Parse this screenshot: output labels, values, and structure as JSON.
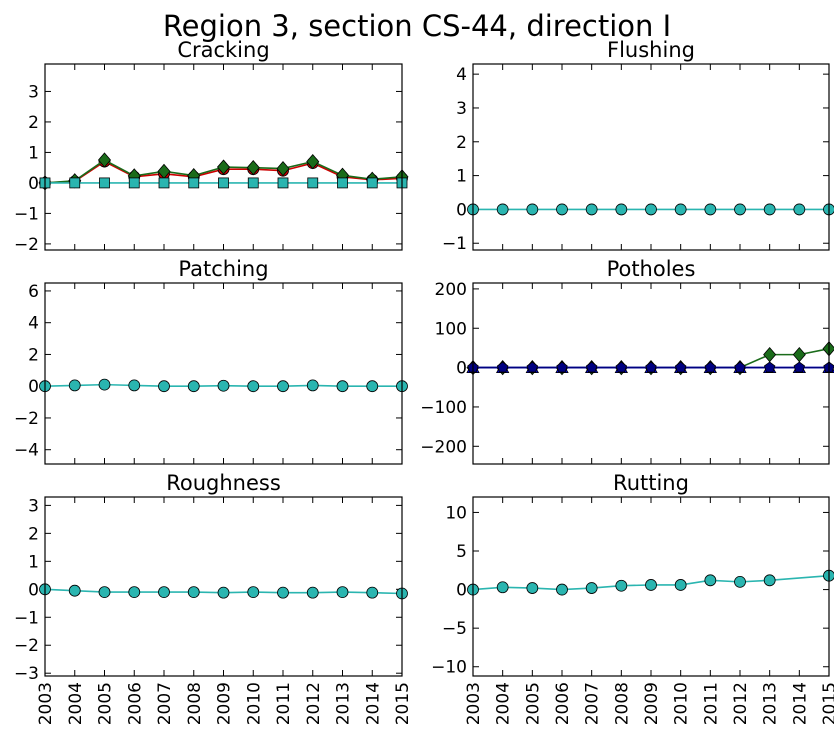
{
  "figure_title": "Region 3, section CS-44, direction I",
  "x_tick_labels": [
    "2003",
    "2004",
    "2005",
    "2006",
    "2007",
    "2008",
    "2009",
    "2010",
    "2011",
    "2012",
    "2013",
    "2014",
    "2015"
  ],
  "chart_data": [
    {
      "type": "line",
      "title": "Cracking",
      "x": [
        2003,
        2004,
        2005,
        2006,
        2007,
        2008,
        2009,
        2010,
        2011,
        2012,
        2013,
        2014,
        2015
      ],
      "xlim": [
        2003,
        2015
      ],
      "ylim": [
        -2.2,
        3.9
      ],
      "yticks": [
        -2,
        -1,
        0,
        1,
        2,
        3
      ],
      "series": [
        {
          "color": "#cc0000",
          "marker": "circle",
          "values": [
            0,
            0.05,
            0.7,
            0.2,
            0.3,
            0.2,
            0.45,
            0.45,
            0.4,
            0.65,
            0.2,
            0.1,
            0.15
          ]
        },
        {
          "color": "#1a6b1a",
          "marker": "diamond",
          "values": [
            0,
            0.07,
            0.75,
            0.23,
            0.38,
            0.24,
            0.52,
            0.5,
            0.47,
            0.7,
            0.25,
            0.12,
            0.2
          ]
        },
        {
          "color": "#2ab5b0",
          "marker": "square",
          "values": [
            0,
            0,
            0,
            0,
            0,
            0,
            0,
            0,
            0,
            0,
            0,
            0,
            0
          ]
        }
      ]
    },
    {
      "type": "line",
      "title": "Flushing",
      "x": [
        2003,
        2004,
        2005,
        2006,
        2007,
        2008,
        2009,
        2010,
        2011,
        2012,
        2013,
        2014,
        2015
      ],
      "xlim": [
        2003,
        2015
      ],
      "ylim": [
        -1.2,
        4.3
      ],
      "yticks": [
        -1,
        0,
        1,
        2,
        3,
        4
      ],
      "series": [
        {
          "color": "#2ab5b0",
          "marker": "circle",
          "values": [
            0,
            0,
            0,
            0,
            0,
            0,
            0,
            0,
            0,
            0,
            0,
            0,
            0
          ]
        }
      ]
    },
    {
      "type": "line",
      "title": "Patching",
      "x": [
        2003,
        2004,
        2005,
        2006,
        2007,
        2008,
        2009,
        2010,
        2011,
        2012,
        2013,
        2014,
        2015
      ],
      "xlim": [
        2003,
        2015
      ],
      "ylim": [
        -4.9,
        6.5
      ],
      "yticks": [
        -4,
        -2,
        0,
        2,
        4,
        6
      ],
      "series": [
        {
          "color": "#2ab5b0",
          "marker": "circle",
          "values": [
            0,
            0.05,
            0.1,
            0.05,
            0,
            0,
            0.03,
            0,
            0,
            0.05,
            0,
            0,
            0
          ]
        }
      ]
    },
    {
      "type": "line",
      "title": "Potholes",
      "x": [
        2003,
        2004,
        2005,
        2006,
        2007,
        2008,
        2009,
        2010,
        2011,
        2012,
        2013,
        2014,
        2015
      ],
      "xlim": [
        2003,
        2015
      ],
      "ylim": [
        -245,
        215
      ],
      "yticks": [
        -200,
        -100,
        0,
        100,
        200
      ],
      "series": [
        {
          "color": "#1a6b1a",
          "marker": "diamond",
          "values": [
            0,
            0,
            0,
            0,
            0,
            0,
            0,
            0,
            0,
            0,
            33,
            33,
            48
          ]
        },
        {
          "color": "#0000ee",
          "marker": "triangle",
          "values": [
            0,
            0,
            0,
            0,
            0,
            0,
            0,
            0,
            0,
            0,
            0,
            0,
            0
          ]
        },
        {
          "color": "#000080",
          "marker": "pentagon",
          "values": [
            0,
            0,
            0,
            0,
            0,
            0,
            0,
            0,
            0,
            0,
            0,
            0,
            0
          ]
        }
      ]
    },
    {
      "type": "line",
      "title": "Roughness",
      "x": [
        2003,
        2004,
        2005,
        2006,
        2007,
        2008,
        2009,
        2010,
        2011,
        2012,
        2013,
        2014,
        2015
      ],
      "xlim": [
        2003,
        2015
      ],
      "ylim": [
        -3.1,
        3.3
      ],
      "yticks": [
        -3,
        -2,
        -1,
        0,
        1,
        2,
        3
      ],
      "series": [
        {
          "color": "#2ab5b0",
          "marker": "circle",
          "values": [
            0,
            -0.05,
            -0.1,
            -0.1,
            -0.1,
            -0.1,
            -0.12,
            -0.1,
            -0.12,
            -0.12,
            -0.1,
            -0.12,
            -0.15
          ]
        }
      ]
    },
    {
      "type": "line",
      "title": "Rutting",
      "x": [
        2003,
        2004,
        2005,
        2006,
        2007,
        2008,
        2009,
        2010,
        2011,
        2012,
        2013,
        2014,
        2015
      ],
      "xlim": [
        2003,
        2015
      ],
      "ylim": [
        -11.2,
        12
      ],
      "yticks": [
        -10,
        -5,
        0,
        5,
        10
      ],
      "series": [
        {
          "color": "#2ab5b0",
          "marker": "circle",
          "values": [
            0,
            0.3,
            0.2,
            0,
            0.2,
            0.5,
            0.6,
            0.6,
            1.2,
            1.0,
            1.2,
            null,
            1.8
          ]
        }
      ]
    }
  ]
}
